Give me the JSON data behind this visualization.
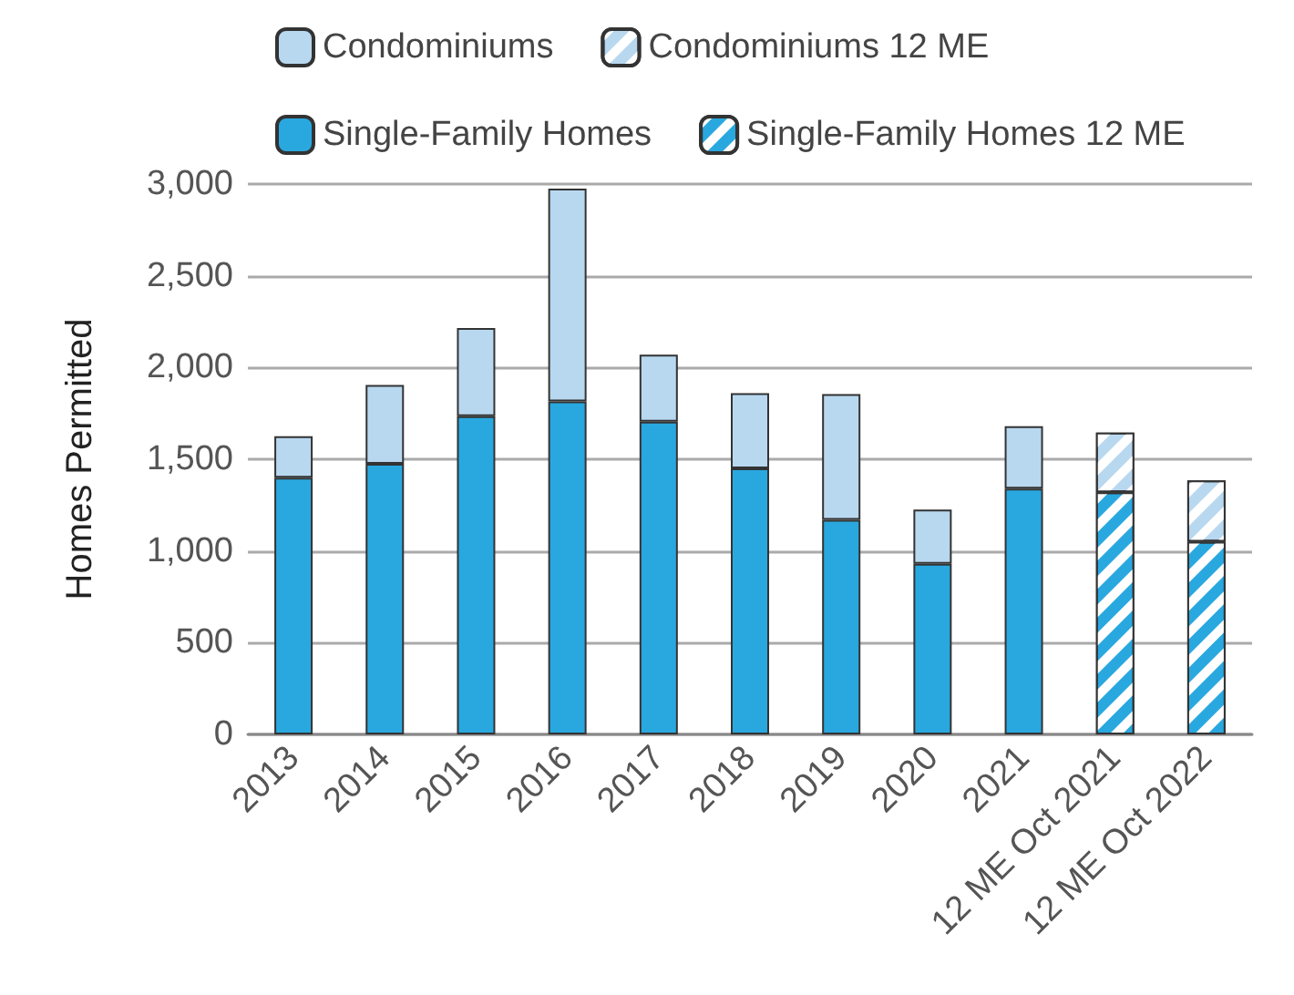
{
  "chart_data": {
    "type": "bar",
    "stacked": true,
    "ylabel": "Homes Permitted",
    "categories": [
      "2013",
      "2014",
      "2015",
      "2016",
      "2017",
      "2018",
      "2019",
      "2020",
      "2021",
      "12 ME Oct 2021",
      "12 ME Oct 2022"
    ],
    "series": [
      {
        "name": "Single-Family Homes",
        "color": "#29a8e0",
        "values": [
          1400,
          1475,
          1735,
          1815,
          1705,
          1450,
          1170,
          930,
          1340,
          null,
          null
        ]
      },
      {
        "name": "Condominiums",
        "color": "#b8d8f0",
        "values": [
          225,
          430,
          480,
          1160,
          365,
          410,
          685,
          295,
          340,
          null,
          null
        ]
      },
      {
        "name": "Single-Family Homes 12 ME",
        "color": "#29a8e0",
        "values": [
          null,
          null,
          null,
          null,
          null,
          null,
          null,
          null,
          null,
          1320,
          1050
        ]
      },
      {
        "name": "Condominiums 12 ME",
        "color": "#b8d8f0",
        "values": [
          null,
          null,
          null,
          null,
          null,
          null,
          null,
          null,
          null,
          325,
          335
        ]
      }
    ],
    "ylim": [
      0,
      3000
    ],
    "yticks": [
      {
        "value": 0,
        "label": "0"
      },
      {
        "value": 500,
        "label": "500"
      },
      {
        "value": 1000,
        "label": "1,000"
      },
      {
        "value": 1500,
        "label": "1,500"
      },
      {
        "value": 2000,
        "label": "2,000"
      },
      {
        "value": 2500,
        "label": "2,500"
      },
      {
        "value": 3000,
        "label": "3,000"
      }
    ],
    "grid": "y",
    "legend": "top"
  }
}
